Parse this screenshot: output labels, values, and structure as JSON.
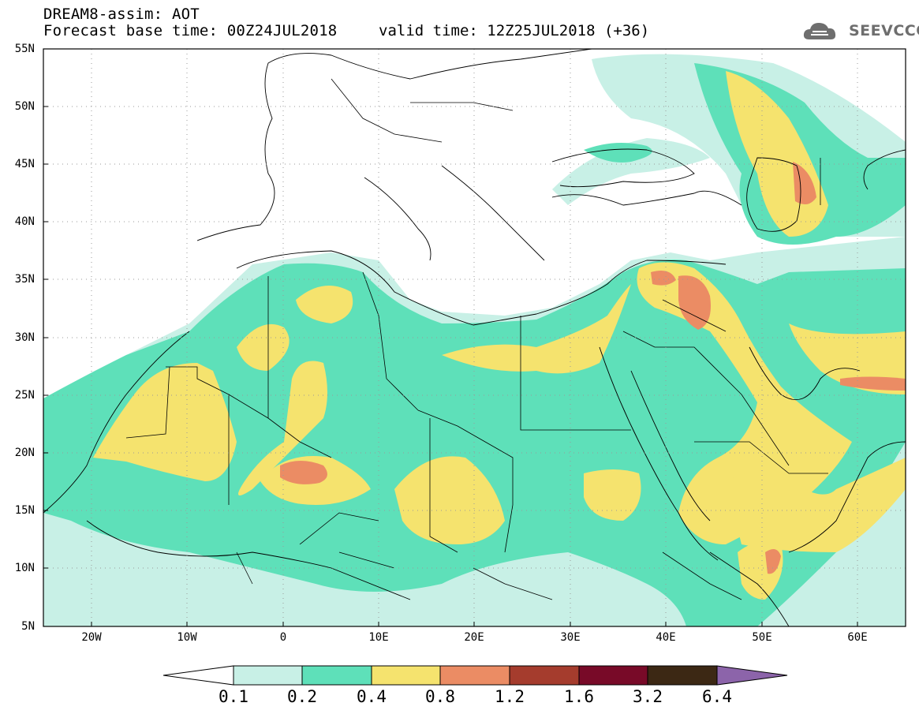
{
  "header": {
    "title_line1": "DREAM8-assim: AOT",
    "title_line2": "Forecast base time: 00Z24JUL2018",
    "valid_time": "valid time: 12Z25JUL2018 (+36)",
    "logo_text": "SEEVCCC"
  },
  "map": {
    "lat_labels": [
      "55N",
      "50N",
      "45N",
      "40N",
      "35N",
      "30N",
      "25N",
      "20N",
      "15N",
      "10N",
      "5N"
    ],
    "lon_labels": [
      "20W",
      "10W",
      "0",
      "10E",
      "20E",
      "30E",
      "40E",
      "50E",
      "60E"
    ],
    "lat_range": [
      5,
      55
    ],
    "lon_range": [
      -25,
      65
    ]
  },
  "colorbar": {
    "labels": [
      "0.1",
      "0.2",
      "0.4",
      "0.8",
      "1.2",
      "1.6",
      "3.2",
      "6.4"
    ],
    "colors": [
      "#c8f0e6",
      "#5ee0b9",
      "#f5e36e",
      "#eb8c64",
      "#a53c2d",
      "#780a28",
      "#3c2814",
      "#8c64aa"
    ]
  },
  "colors": {
    "aot_0_1": "#c8f0e6",
    "aot_0_2": "#5ee0b9",
    "aot_0_4": "#f5e36e",
    "aot_0_8": "#eb8c64",
    "aot_1_2": "#a53c2d"
  }
}
